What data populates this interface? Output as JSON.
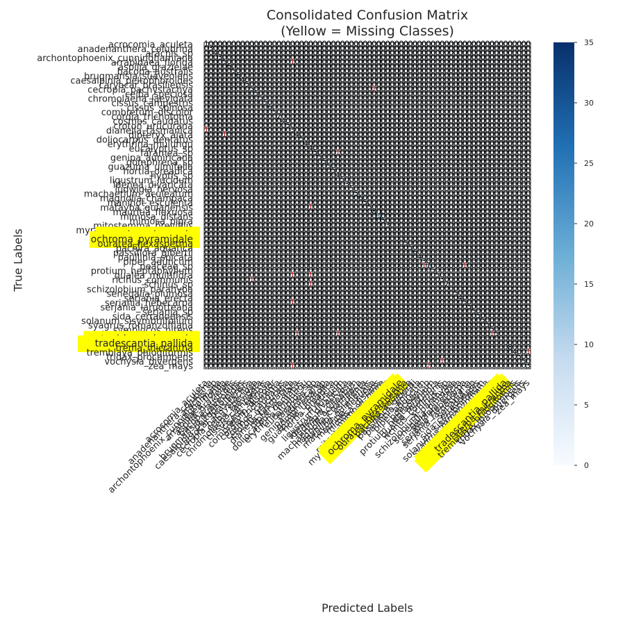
{
  "chart_data": {
    "type": "heatmap",
    "title": "Consolidated Confusion Matrix\n(Yellow = Missing Classes)",
    "title_lines": [
      "Consolidated Confusion Matrix",
      "(Yellow = Missing Classes)"
    ],
    "xlabel": "Predicted Labels",
    "ylabel": "True Labels",
    "labels": [
      "acrocomia_aculeta",
      "anadenanthera_colubrina",
      "arachis_sp",
      "archontophoenix_cunninghamiana",
      "arrabidaea_florida",
      "aspilia_grazielae",
      "bacopa_australis",
      "brugmansia_suaveolens",
      "caesalpinia_peltophoroides",
      "caryocar_brasiliensis",
      "cecropia_pachystachya",
      "ceiba_speciosa",
      "chromolaena_laevigata",
      "cissus_campestris",
      "cissus_spinosa",
      "combretum_discolor",
      "cordia_trichotoma",
      "cosmos_caudatus",
      "croton_urucurana",
      "dianella_tasmanica",
      "dipteryx_alata",
      "doliocarpus_dentatus",
      "erythrina_mulungu",
      "eucalyptus_sp",
      "faramea_sp",
      "genipa_auniricana",
      "gomphrena_sp",
      "guazuma_ulmifolia",
      "hortia_oreadica",
      "hyptis_sp",
      "ligustrum_lucidum",
      "ldenea_divaricata",
      "ludwigia_nervosa",
      "machaerium_aculeatum",
      "magnolia_champaca",
      "manihot_esculenta",
      "matayba_guianensis",
      "mauritia_flexuosa",
      "mimosa_distans",
      "mimosa_pigra",
      "mitostemma_brevifilis",
      "myracrodruon_urundeuva",
      "myrcia_guianensis",
      "ochroma_pyramidale",
      "ouratea_hexasperma",
      "pachira_aquatica",
      "passiflora_gibertii",
      "paullinia_spicata",
      "piper_aduncum",
      "poaceae_sp",
      "protium_heptaphyllum",
      "qualea_multiflora",
      "ricinus_communis",
      "schinus_sp",
      "schizolobium_parahyba",
      "senegalia_plumosa",
      "serjania_erecta",
      "serjania_hebecarpa",
      "serjania_laruotteana",
      "serjania_sp",
      "sida_cerradoensis",
      "solanum_sisymbriifolium",
      "syagrus_romanzoffiana",
      "symplocos_nitens",
      "tabebuia_chrysotricha",
      "tapirira_guianensis",
      "tradescantia_pallida",
      "trema_micrantha",
      "tremblaya_phlogiformis",
      "tridax_procumbens",
      "vochysia_divergens",
      "zea_mays"
    ],
    "missing_classes": [
      "myrcia_guianensis",
      "ochroma_pyramidale",
      "tapirira_guianensis",
      "tradescantia_pallida"
    ],
    "diagonal": [
      1,
      3,
      4,
      3,
      5,
      6,
      5,
      6,
      4,
      5,
      5,
      5,
      5,
      5,
      6,
      5,
      2,
      4,
      5,
      3,
      4,
      5,
      4,
      4,
      5,
      5,
      5,
      5,
      5,
      4,
      5,
      3,
      5,
      5,
      6,
      5,
      5,
      8,
      12,
      5,
      3,
      0,
      0,
      0,
      5,
      5,
      6,
      4,
      3,
      7,
      5,
      5,
      3,
      2,
      0,
      5,
      4,
      5,
      5,
      5,
      5,
      5,
      5,
      5,
      5,
      0,
      0,
      8,
      4,
      5,
      5,
      3
    ],
    "off_diagonal": [
      [
        4,
        19,
        1
      ],
      [
        19,
        0,
        1
      ],
      [
        20,
        4,
        1
      ],
      [
        10,
        37,
        2
      ],
      [
        24,
        29,
        1
      ],
      [
        36,
        23,
        1
      ],
      [
        36,
        23,
        1
      ],
      [
        49,
        48,
        1
      ],
      [
        49,
        57,
        1
      ],
      [
        49,
        72,
        1
      ],
      [
        51,
        19,
        1
      ],
      [
        51,
        23,
        1
      ],
      [
        52,
        10,
        1
      ],
      [
        53,
        23,
        1
      ],
      [
        57,
        19,
        1
      ],
      [
        64,
        20,
        1
      ],
      [
        64,
        29,
        1
      ],
      [
        64,
        63,
        1
      ],
      [
        68,
        71,
        1
      ],
      [
        70,
        52,
        1
      ],
      [
        71,
        19,
        1
      ],
      [
        71,
        49,
        2
      ]
    ],
    "colorbar": {
      "min": 0,
      "max": 35,
      "ticks": [
        0,
        5,
        10,
        15,
        20,
        25,
        30,
        35
      ]
    },
    "colors": {
      "highlight": "#ffff00",
      "cell_border": "#000000",
      "cmap_low": "#f7fbff",
      "cmap_high": "#08306b",
      "offdiag_text": "#cc2222"
    }
  }
}
